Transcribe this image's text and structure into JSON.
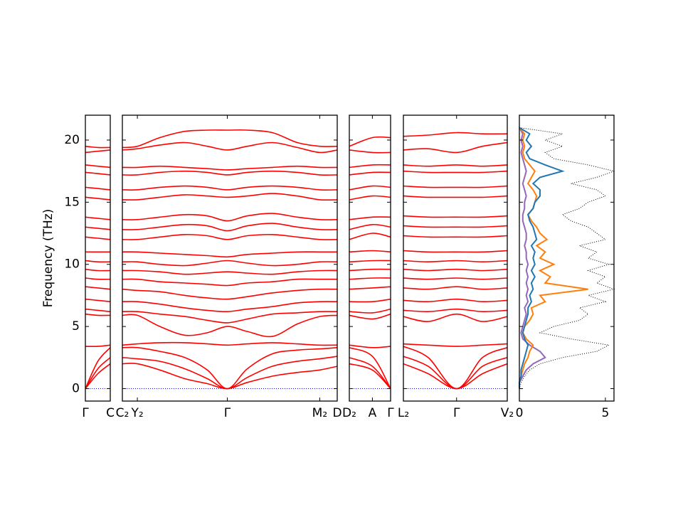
{
  "chart_data": {
    "type": "band",
    "ylabel": "Frequency (THz)",
    "ylim": [
      -1,
      22
    ],
    "yticks": [
      0,
      5,
      10,
      15,
      20
    ],
    "color": "red",
    "zero_line": {
      "value": 0,
      "color": "blue"
    },
    "panels": [
      {
        "xlim": [
          0,
          1
        ],
        "xticks": [
          {
            "value": 0,
            "label": "Γ"
          },
          {
            "value": 1,
            "label": "C"
          }
        ],
        "x": [
          0,
          0.5,
          1
        ],
        "bands": [
          [
            0,
            1.2,
            2.0
          ],
          [
            0,
            1.6,
            2.5
          ],
          [
            0,
            2.2,
            3.3
          ],
          [
            3.4,
            3.4,
            3.5
          ],
          [
            6.0,
            5.9,
            5.9
          ],
          [
            6.4,
            6.3,
            6.2
          ],
          [
            7.2,
            7.1,
            7.0
          ],
          [
            8.2,
            8.1,
            8.0
          ],
          [
            8.9,
            8.8,
            8.8
          ],
          [
            9.6,
            9.5,
            9.5
          ],
          [
            10.3,
            10.2,
            10.2
          ],
          [
            11.0,
            11.0,
            11.0
          ],
          [
            12.2,
            12.1,
            12.0
          ],
          [
            13.0,
            12.9,
            12.8
          ],
          [
            13.8,
            13.7,
            13.6
          ],
          [
            15.4,
            15.3,
            15.2
          ],
          [
            16.2,
            16.1,
            16.0
          ],
          [
            17.4,
            17.3,
            17.2
          ],
          [
            18.0,
            17.9,
            17.8
          ],
          [
            19.0,
            19.1,
            19.2
          ],
          [
            19.5,
            19.4,
            19.4
          ]
        ]
      },
      {
        "xlim": [
          0,
          8.6
        ],
        "xticks": [
          {
            "value": 0,
            "label": "C₂"
          },
          {
            "value": 0.6,
            "label": "Y₂"
          },
          {
            "value": 4.2,
            "label": "Γ"
          },
          {
            "value": 7.9,
            "label": "M₂"
          },
          {
            "value": 8.6,
            "label": "D"
          }
        ],
        "x": [
          0,
          0.6,
          1.5,
          2.5,
          3.4,
          4.2,
          5,
          6,
          7,
          7.9,
          8.6
        ],
        "bands": [
          [
            2.0,
            2.0,
            1.5,
            0.8,
            0.4,
            0,
            0.5,
            1.0,
            1.3,
            1.5,
            1.8
          ],
          [
            2.5,
            2.4,
            2.2,
            1.6,
            0.8,
            0,
            0.9,
            1.8,
            2.2,
            2.4,
            2.6
          ],
          [
            3.3,
            3.3,
            3.0,
            2.5,
            1.5,
            0,
            1.6,
            2.8,
            3.1,
            3.2,
            3.3
          ],
          [
            3.5,
            3.6,
            3.7,
            3.7,
            3.6,
            3.5,
            3.6,
            3.7,
            3.6,
            3.5,
            3.5
          ],
          [
            5.9,
            5.9,
            5.0,
            4.3,
            4.5,
            5.0,
            4.6,
            4.2,
            5.2,
            5.8,
            5.9
          ],
          [
            6.2,
            6.2,
            6.0,
            5.8,
            5.5,
            5.3,
            5.6,
            6.0,
            6.1,
            6.2,
            6.2
          ],
          [
            7.0,
            7.0,
            6.8,
            6.5,
            6.3,
            6.2,
            6.4,
            6.6,
            6.9,
            7.0,
            7.0
          ],
          [
            8.0,
            7.9,
            7.8,
            7.5,
            7.3,
            7.2,
            7.4,
            7.7,
            7.9,
            8.0,
            8.0
          ],
          [
            8.8,
            8.8,
            8.6,
            8.5,
            8.4,
            8.3,
            8.5,
            8.6,
            8.8,
            8.8,
            8.8
          ],
          [
            9.5,
            9.5,
            9.4,
            9.2,
            9.3,
            9.4,
            9.3,
            9.2,
            9.4,
            9.5,
            9.5
          ],
          [
            10.2,
            10.2,
            10.0,
            9.9,
            10.1,
            10.3,
            10.1,
            9.9,
            10.0,
            10.2,
            10.2
          ],
          [
            11.0,
            11.0,
            10.9,
            10.8,
            10.7,
            10.6,
            10.8,
            10.9,
            11.0,
            11.0,
            11.0
          ],
          [
            12.0,
            12.0,
            12.2,
            12.4,
            12.3,
            12.0,
            12.3,
            12.4,
            12.2,
            12.0,
            12.0
          ],
          [
            12.8,
            12.8,
            13.0,
            13.2,
            13.1,
            12.7,
            13.1,
            13.3,
            13.0,
            12.8,
            12.8
          ],
          [
            13.6,
            13.6,
            13.8,
            14.0,
            13.9,
            13.5,
            13.9,
            14.1,
            13.8,
            13.6,
            13.6
          ],
          [
            15.2,
            15.2,
            15.4,
            15.6,
            15.5,
            15.4,
            15.5,
            15.7,
            15.5,
            15.2,
            15.2
          ],
          [
            16.0,
            16.0,
            16.2,
            16.3,
            16.2,
            16.0,
            16.2,
            16.3,
            16.2,
            16.0,
            16.0
          ],
          [
            17.2,
            17.2,
            17.4,
            17.5,
            17.4,
            17.2,
            17.4,
            17.5,
            17.4,
            17.2,
            17.2
          ],
          [
            17.8,
            17.8,
            17.9,
            17.8,
            17.7,
            17.6,
            17.7,
            17.8,
            17.9,
            17.8,
            17.8
          ],
          [
            19.2,
            19.3,
            19.6,
            19.8,
            19.5,
            19.2,
            19.5,
            19.8,
            19.4,
            19.0,
            19.2
          ],
          [
            19.4,
            19.5,
            20.2,
            20.7,
            20.8,
            20.8,
            20.8,
            20.6,
            19.8,
            19.5,
            19.5
          ]
        ]
      },
      {
        "xlim": [
          0,
          1.7
        ],
        "xticks": [
          {
            "value": 0,
            "label": "D₂"
          },
          {
            "value": 0.95,
            "label": "A"
          },
          {
            "value": 1.7,
            "label": "Γ"
          }
        ],
        "x": [
          0,
          0.95,
          1.7
        ],
        "bands": [
          [
            2.0,
            1.5,
            0
          ],
          [
            2.5,
            1.8,
            0
          ],
          [
            3.3,
            2.6,
            0
          ],
          [
            3.5,
            3.3,
            3.4
          ],
          [
            5.9,
            5.6,
            6.0
          ],
          [
            6.2,
            6.1,
            6.4
          ],
          [
            7.0,
            7.0,
            7.2
          ],
          [
            8.0,
            8.1,
            8.2
          ],
          [
            8.8,
            8.9,
            8.9
          ],
          [
            9.5,
            9.6,
            9.6
          ],
          [
            10.2,
            10.3,
            10.3
          ],
          [
            11.0,
            11.1,
            11.0
          ],
          [
            12.0,
            12.5,
            12.2
          ],
          [
            12.8,
            13.2,
            13.0
          ],
          [
            13.6,
            13.8,
            13.8
          ],
          [
            15.2,
            15.5,
            15.4
          ],
          [
            16.0,
            16.3,
            16.2
          ],
          [
            17.2,
            17.4,
            17.4
          ],
          [
            17.8,
            18.0,
            18.0
          ],
          [
            19.2,
            19.0,
            19.0
          ],
          [
            19.5,
            20.2,
            20.2
          ]
        ]
      },
      {
        "xlim": [
          0,
          4.2
        ],
        "xticks": [
          {
            "value": 0,
            "label": "L₂"
          },
          {
            "value": 2.15,
            "label": "Γ"
          },
          {
            "value": 4.2,
            "label": "V₂"
          }
        ],
        "x": [
          0,
          1,
          2.15,
          3.2,
          4.2
        ],
        "bands": [
          [
            2.0,
            1.2,
            0,
            1.2,
            2.0
          ],
          [
            2.6,
            1.8,
            0,
            1.8,
            2.5
          ],
          [
            3.4,
            2.5,
            0,
            2.5,
            3.3
          ],
          [
            3.6,
            3.5,
            3.4,
            3.5,
            3.6
          ],
          [
            5.8,
            5.4,
            6.0,
            5.4,
            5.8
          ],
          [
            6.3,
            6.2,
            6.4,
            6.2,
            6.3
          ],
          [
            7.1,
            7.0,
            7.2,
            7.0,
            7.1
          ],
          [
            8.1,
            8.0,
            8.2,
            8.0,
            8.1
          ],
          [
            8.9,
            8.8,
            8.9,
            8.8,
            8.9
          ],
          [
            9.6,
            9.5,
            9.6,
            9.5,
            9.6
          ],
          [
            10.3,
            10.2,
            10.3,
            10.2,
            10.3
          ],
          [
            11.1,
            11.0,
            11.0,
            11.0,
            11.1
          ],
          [
            12.3,
            12.2,
            12.2,
            12.2,
            12.3
          ],
          [
            13.1,
            13.0,
            13.0,
            13.0,
            13.1
          ],
          [
            13.9,
            13.8,
            13.8,
            13.8,
            13.9
          ],
          [
            15.5,
            15.4,
            15.4,
            15.4,
            15.5
          ],
          [
            16.3,
            16.2,
            16.2,
            16.2,
            16.3
          ],
          [
            17.5,
            17.4,
            17.4,
            17.4,
            17.5
          ],
          [
            18.0,
            17.9,
            18.0,
            17.9,
            18.0
          ],
          [
            19.2,
            19.3,
            19.0,
            19.5,
            19.8
          ],
          [
            20.3,
            20.4,
            20.6,
            20.5,
            20.5
          ]
        ]
      }
    ],
    "dos": {
      "xlim": [
        0,
        5.5
      ],
      "xticks": [
        0,
        5
      ],
      "y": [
        0,
        0.5,
        1,
        1.5,
        2,
        2.5,
        3,
        3.5,
        4,
        4.5,
        5,
        5.5,
        6,
        6.5,
        7,
        7.5,
        8,
        8.5,
        9,
        9.5,
        10,
        10.5,
        11,
        11.5,
        12,
        12.5,
        13,
        13.5,
        14,
        14.5,
        15,
        15.5,
        16,
        16.5,
        17,
        17.5,
        18,
        18.5,
        19,
        19.5,
        20,
        20.5,
        21
      ],
      "series": [
        {
          "color": "black",
          "dotted": true,
          "values": [
            0,
            0.1,
            0.3,
            0.6,
            1.2,
            2.5,
            4.5,
            5.2,
            3.0,
            1.2,
            2.0,
            3.5,
            4.0,
            3.5,
            5.0,
            4.0,
            5.5,
            4.5,
            5.0,
            4.0,
            5.2,
            4.0,
            4.5,
            3.5,
            5.0,
            4.5,
            4.0,
            3.0,
            2.5,
            3.5,
            4.0,
            5.0,
            4.5,
            3.0,
            4.5,
            5.5,
            4.0,
            2.0,
            1.5,
            2.5,
            1.5,
            2.5,
            0
          ]
        },
        {
          "color": "#9467bd",
          "values": [
            0,
            0,
            0.2,
            0.4,
            0.8,
            1.5,
            1.2,
            0.6,
            0.2,
            0.1,
            0.2,
            0.3,
            0.4,
            0.3,
            0.5,
            0.4,
            0.5,
            0.4,
            0.5,
            0.4,
            0.5,
            0.4,
            0.4,
            0.3,
            0.4,
            0.4,
            0.3,
            0.2,
            0.2,
            0.3,
            0.3,
            0.4,
            0.3,
            0.2,
            0.3,
            0.4,
            0.3,
            0.2,
            0.1,
            0.2,
            0.1,
            0.2,
            0
          ]
        },
        {
          "color": "#ff7f0e",
          "values": [
            0,
            0,
            0.1,
            0.2,
            0.3,
            0.5,
            0.6,
            0.8,
            0.4,
            0.2,
            0.3,
            0.6,
            0.8,
            0.7,
            1.5,
            1.2,
            4.0,
            1.5,
            1.8,
            1.2,
            2.0,
            1.2,
            1.5,
            1.0,
            1.6,
            1.2,
            1.0,
            0.7,
            0.5,
            0.8,
            0.9,
            1.0,
            0.8,
            0.5,
            0.7,
            0.9,
            0.6,
            0.3,
            0.2,
            0.3,
            0.2,
            0.3,
            0
          ]
        },
        {
          "color": "#1f77b4",
          "values": [
            0,
            0,
            0.1,
            0.1,
            0.2,
            0.3,
            0.4,
            0.5,
            0.3,
            0.2,
            0.3,
            0.4,
            0.5,
            0.5,
            0.7,
            0.6,
            0.8,
            0.7,
            0.9,
            0.7,
            0.9,
            0.8,
            0.9,
            0.7,
            1.0,
            0.9,
            0.8,
            0.6,
            0.5,
            0.8,
            0.9,
            1.2,
            1.2,
            0.8,
            1.2,
            2.5,
            1.5,
            0.6,
            0.4,
            0.7,
            0.4,
            0.6,
            0
          ]
        }
      ]
    }
  }
}
